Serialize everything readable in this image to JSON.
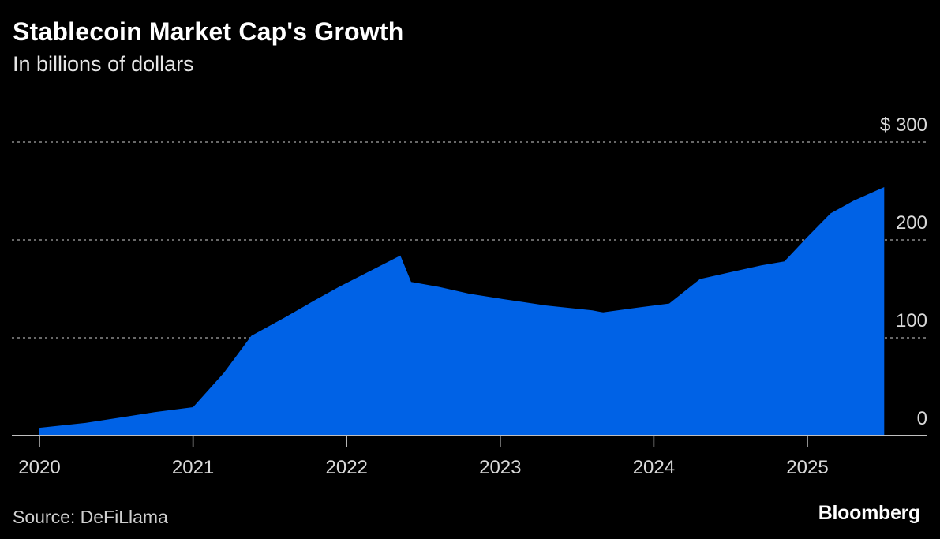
{
  "title": "Stablecoin Market Cap's Growth",
  "subtitle": "In billions of dollars",
  "source": "Source: DeFiLlama",
  "brand": "Bloomberg",
  "colors": {
    "background": "#000000",
    "area": "#0062e6",
    "grid": "#8a8a8a",
    "axis": "#bfbfbf"
  },
  "chart_data": {
    "type": "area",
    "title": "Stablecoin Market Cap's Growth",
    "subtitle": "In billions of dollars",
    "xlabel": "",
    "ylabel": "",
    "ylim": [
      0,
      300
    ],
    "y_ticks": [
      {
        "value": 0,
        "label": "0"
      },
      {
        "value": 100,
        "label": "100"
      },
      {
        "value": 200,
        "label": "200"
      },
      {
        "value": 300,
        "label": "$ 300"
      }
    ],
    "x_ticks": [
      {
        "value": 2020.0,
        "label": "2020"
      },
      {
        "value": 2021.0,
        "label": "2021"
      },
      {
        "value": 2022.0,
        "label": "2022"
      },
      {
        "value": 2023.0,
        "label": "2023"
      },
      {
        "value": 2024.0,
        "label": "2024"
      },
      {
        "value": 2025.0,
        "label": "2025"
      }
    ],
    "grid": true,
    "legend": "none",
    "series": [
      {
        "x": [
          2020.0,
          2020.3,
          2020.55,
          2020.75,
          2021.0,
          2021.2,
          2021.38,
          2021.6,
          2021.8,
          2021.95,
          2022.1,
          2022.35,
          2022.42,
          2022.6,
          2022.8,
          2023.0,
          2023.3,
          2023.6,
          2023.67,
          2023.9,
          2024.1,
          2024.3,
          2024.5,
          2024.7,
          2024.85,
          2025.0,
          2025.15,
          2025.3,
          2025.5
        ],
        "y": [
          8,
          13,
          19,
          24,
          29,
          64,
          102,
          121,
          139,
          152,
          164,
          184,
          157,
          152,
          145,
          140,
          133,
          128,
          126,
          131,
          135,
          160,
          167,
          174,
          178,
          203,
          227,
          240,
          254
        ]
      }
    ]
  }
}
